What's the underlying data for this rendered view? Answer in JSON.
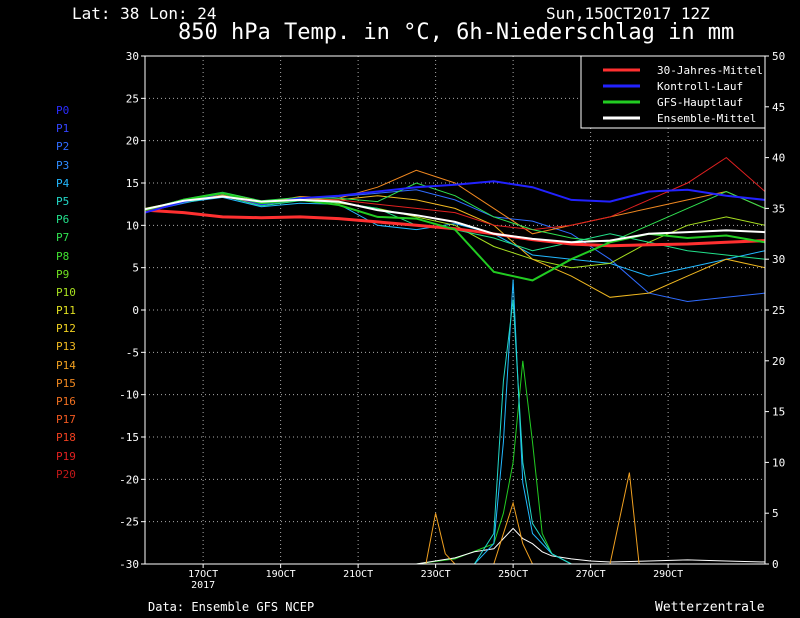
{
  "header": {
    "location": "Lat: 38 Lon: 24",
    "date": "Sun,15OCT2017 12Z",
    "title": "850 hPa Temp. in °C, 6h-Niederschlag in mm"
  },
  "footer": {
    "source": "Data: Ensemble GFS NCEP",
    "brand": "Wetterzentrale"
  },
  "members": [
    {
      "label": "P0",
      "color": "#2a2cff"
    },
    {
      "label": "P1",
      "color": "#3344ff"
    },
    {
      "label": "P2",
      "color": "#2f6cff"
    },
    {
      "label": "P3",
      "color": "#2f8cff"
    },
    {
      "label": "P4",
      "color": "#22b8ff"
    },
    {
      "label": "P5",
      "color": "#22d8c8"
    },
    {
      "label": "P6",
      "color": "#22e08a"
    },
    {
      "label": "P7",
      "color": "#30e050"
    },
    {
      "label": "P8",
      "color": "#40e030"
    },
    {
      "label": "P9",
      "color": "#70e020"
    },
    {
      "label": "P10",
      "color": "#a8e020"
    },
    {
      "label": "P11",
      "color": "#e0e020"
    },
    {
      "label": "P12",
      "color": "#f0d020"
    },
    {
      "label": "P13",
      "color": "#f0b820"
    },
    {
      "label": "P14",
      "color": "#f0a020"
    },
    {
      "label": "P15",
      "color": "#f08820"
    },
    {
      "label": "P16",
      "color": "#f07020"
    },
    {
      "label": "P17",
      "color": "#f05820"
    },
    {
      "label": "P18",
      "color": "#f04020"
    },
    {
      "label": "P19",
      "color": "#e02020"
    },
    {
      "label": "P20",
      "color": "#c01818"
    }
  ],
  "chart_data": {
    "type": "line",
    "title": "850 hPa Temp. in °C, 6h-Niederschlag in mm",
    "y_left": {
      "min": -30,
      "max": 30,
      "ticks": [
        30,
        25,
        20,
        15,
        10,
        5,
        0,
        -5,
        -10,
        -15,
        -20,
        -25,
        -30
      ]
    },
    "y_right": {
      "min": 0,
      "max": 50,
      "ticks": [
        50,
        45,
        40,
        35,
        30,
        25,
        20,
        15,
        10,
        5,
        0
      ]
    },
    "x_ticks": [
      {
        "label": "17OCT",
        "sub": "2017",
        "t": 1.5
      },
      {
        "label": "19OCT",
        "sub": "",
        "t": 3.5
      },
      {
        "label": "21OCT",
        "sub": "",
        "t": 5.5
      },
      {
        "label": "23OCT",
        "sub": "",
        "t": 7.5
      },
      {
        "label": "25OCT",
        "sub": "",
        "t": 9.5
      },
      {
        "label": "27OCT",
        "sub": "",
        "t": 11.5
      },
      {
        "label": "29OCT",
        "sub": "",
        "t": 13.5
      }
    ],
    "x_range_days": [
      0,
      16
    ],
    "grid": true,
    "legend": {
      "position": "top-right",
      "items": [
        {
          "label": "30-Jahres-Mittel",
          "color": "#ff3030"
        },
        {
          "label": "Kontroll-Lauf",
          "color": "#2222ff"
        },
        {
          "label": "GFS-Hauptlauf",
          "color": "#22cc22"
        },
        {
          "label": "Ensemble-Mittel",
          "color": "#ffffff"
        }
      ]
    },
    "series_temp": [
      {
        "name": "30-Jahres-Mittel",
        "color": "#ff3030",
        "width": 3,
        "t": [
          0,
          1,
          2,
          3,
          4,
          5,
          6,
          7,
          8,
          9,
          10,
          11,
          12,
          13,
          14,
          15,
          16
        ],
        "v": [
          11.8,
          11.5,
          11.0,
          10.9,
          11.0,
          10.8,
          10.4,
          10.0,
          9.6,
          9.0,
          8.3,
          7.8,
          7.6,
          7.7,
          7.8,
          8.0,
          8.2
        ]
      },
      {
        "name": "Kontroll-Lauf",
        "color": "#2222ff",
        "width": 2,
        "t": [
          0,
          1,
          2,
          3,
          4,
          5,
          6,
          7,
          8,
          9,
          10,
          11,
          12,
          13,
          14,
          15,
          16
        ],
        "v": [
          11.5,
          12.8,
          13.8,
          12.5,
          13.2,
          13.5,
          14.0,
          14.5,
          14.8,
          15.2,
          14.5,
          13.0,
          12.8,
          14.0,
          14.2,
          13.5,
          13.0
        ]
      },
      {
        "name": "GFS-Hauptlauf",
        "color": "#22cc22",
        "width": 2,
        "t": [
          0,
          1,
          2,
          3,
          4,
          5,
          6,
          7,
          8,
          9,
          10,
          11,
          12,
          13,
          14,
          15,
          16
        ],
        "v": [
          11.8,
          13.0,
          13.8,
          12.6,
          13.0,
          12.4,
          11.0,
          10.8,
          9.5,
          4.5,
          3.5,
          6.0,
          8.0,
          9.0,
          8.5,
          8.8,
          8.0
        ]
      },
      {
        "name": "Ensemble-Mittel",
        "color": "#ffffff",
        "width": 2,
        "t": [
          0,
          1,
          2,
          3,
          4,
          5,
          6,
          7,
          8,
          9,
          10,
          11,
          12,
          13,
          14,
          15,
          16
        ],
        "v": [
          11.9,
          12.9,
          13.4,
          12.8,
          13.0,
          12.8,
          11.8,
          11.2,
          10.4,
          9.0,
          8.4,
          8.0,
          8.2,
          9.0,
          9.2,
          9.4,
          9.2
        ]
      }
    ],
    "series_precip": [
      {
        "name": "GFS-Hauptlauf",
        "color": "#22cc22",
        "t": [
          0,
          7,
          8,
          9,
          9.25,
          9.5,
          9.75,
          10,
          10.25,
          10.5,
          10.75,
          11,
          12,
          13,
          14,
          15,
          16
        ],
        "v": [
          0,
          0,
          0.5,
          2,
          5,
          10,
          20,
          12,
          3,
          1,
          0.5,
          0,
          0,
          0,
          0,
          0,
          0
        ]
      },
      {
        "name": "Ensemble-Mittel",
        "color": "#ffffff",
        "t": [
          0,
          7,
          8,
          8.5,
          9,
          9.25,
          9.5,
          9.75,
          10,
          10.25,
          10.5,
          11,
          11.5,
          12,
          13,
          14,
          15,
          16
        ],
        "v": [
          0,
          0,
          0.6,
          1.2,
          1.5,
          2.5,
          3.5,
          2.5,
          2.0,
          1.2,
          0.8,
          0.5,
          0.3,
          0.2,
          0.3,
          0.4,
          0.3,
          0.2
        ]
      },
      {
        "name": "P4",
        "color": "#22b8ff",
        "t": [
          0,
          8.5,
          9,
          9.25,
          9.5,
          9.75,
          10,
          10.5,
          11,
          16
        ],
        "v": [
          0,
          0,
          2,
          12,
          28,
          8,
          3,
          1,
          0,
          0
        ]
      },
      {
        "name": "P5",
        "color": "#22d8c8",
        "t": [
          0,
          8.5,
          9,
          9.25,
          9.5,
          9.75,
          10,
          10.5,
          11,
          16
        ],
        "v": [
          0,
          0,
          3,
          18,
          26,
          10,
          4,
          1,
          0,
          0
        ]
      },
      {
        "name": "P14",
        "color": "#f0a020",
        "t": [
          0,
          7,
          7.25,
          7.5,
          7.75,
          8,
          9,
          9.5,
          9.75,
          10,
          10.5,
          11,
          12,
          12.5,
          12.75,
          13,
          16
        ],
        "v": [
          0,
          0,
          0,
          5,
          1,
          0,
          0,
          6,
          2,
          0,
          0,
          0,
          0,
          9,
          0,
          0,
          0
        ]
      }
    ],
    "series_members_temp": [
      {
        "name": "P2",
        "color": "#2f6cff",
        "t": [
          0,
          1,
          2,
          3,
          4,
          5,
          6,
          7,
          8,
          9,
          10,
          11,
          12,
          13,
          14,
          15,
          16
        ],
        "v": [
          11.6,
          12.6,
          13.6,
          12.4,
          13.0,
          13.4,
          13.8,
          14.2,
          13.0,
          11.0,
          10.5,
          9.0,
          6.0,
          2.0,
          1.0,
          1.5,
          2.0
        ]
      },
      {
        "name": "P4",
        "color": "#22b8ff",
        "t": [
          0,
          1,
          2,
          3,
          4,
          5,
          6,
          7,
          8,
          9,
          10,
          11,
          12,
          13,
          14,
          15,
          16
        ],
        "v": [
          11.7,
          12.7,
          13.3,
          12.2,
          12.6,
          12.5,
          10.0,
          9.5,
          10.2,
          9.0,
          6.5,
          6.0,
          5.5,
          4.0,
          5.0,
          6.0,
          7.0
        ]
      },
      {
        "name": "P10",
        "color": "#a8e020",
        "t": [
          0,
          1,
          2,
          3,
          4,
          5,
          6,
          7,
          8,
          9,
          10,
          11,
          12,
          13,
          14,
          15,
          16
        ],
        "v": [
          12.0,
          12.9,
          13.5,
          12.7,
          13.1,
          12.6,
          12.0,
          11.0,
          10.0,
          7.5,
          6.0,
          5.0,
          5.5,
          8.0,
          10.0,
          11.0,
          10.0
        ]
      },
      {
        "name": "P13",
        "color": "#f0b820",
        "t": [
          0,
          1,
          2,
          3,
          4,
          5,
          6,
          7,
          8,
          9,
          10,
          11,
          12,
          13,
          14,
          15,
          16
        ],
        "v": [
          11.8,
          13.0,
          13.8,
          12.8,
          13.2,
          13.0,
          13.5,
          13.0,
          12.0,
          10.0,
          6.0,
          4.0,
          1.5,
          2.0,
          4.0,
          6.0,
          5.0
        ]
      },
      {
        "name": "P15",
        "color": "#f08820",
        "t": [
          0,
          1,
          2,
          3,
          4,
          5,
          6,
          7,
          8,
          9,
          10,
          11,
          12,
          13,
          14,
          15,
          16
        ],
        "v": [
          11.9,
          12.8,
          13.6,
          12.6,
          13.4,
          13.2,
          14.5,
          16.5,
          15.0,
          12.0,
          9.0,
          10.0,
          11.0,
          12.0,
          13.0,
          14.0,
          12.0
        ]
      },
      {
        "name": "P19",
        "color": "#e02020",
        "t": [
          0,
          1,
          2,
          3,
          4,
          5,
          6,
          7,
          8,
          9,
          10,
          11,
          12,
          13,
          14,
          15,
          16
        ],
        "v": [
          11.7,
          12.8,
          13.4,
          12.5,
          13.0,
          13.0,
          12.5,
          12.0,
          11.5,
          10.0,
          9.5,
          10.0,
          11.0,
          13.0,
          15.0,
          18.0,
          14.0
        ]
      },
      {
        "name": "P7",
        "color": "#30e050",
        "t": [
          0,
          1,
          2,
          3,
          4,
          5,
          6,
          7,
          8,
          9,
          10,
          11,
          12,
          13,
          14,
          15,
          16
        ],
        "v": [
          11.8,
          13.1,
          13.9,
          12.9,
          13.3,
          13.2,
          12.8,
          15.0,
          13.5,
          11.0,
          9.5,
          8.5,
          8.0,
          10.0,
          12.0,
          14.0,
          12.0
        ]
      },
      {
        "name": "P6",
        "color": "#22e08a",
        "t": [
          0,
          1,
          2,
          3,
          4,
          5,
          6,
          7,
          8,
          9,
          10,
          11,
          12,
          13,
          14,
          15,
          16
        ],
        "v": [
          11.6,
          12.7,
          13.5,
          12.3,
          12.9,
          12.7,
          12.0,
          10.0,
          9.5,
          8.5,
          7.0,
          8.0,
          9.0,
          8.0,
          7.0,
          6.5,
          6.0
        ]
      }
    ]
  }
}
